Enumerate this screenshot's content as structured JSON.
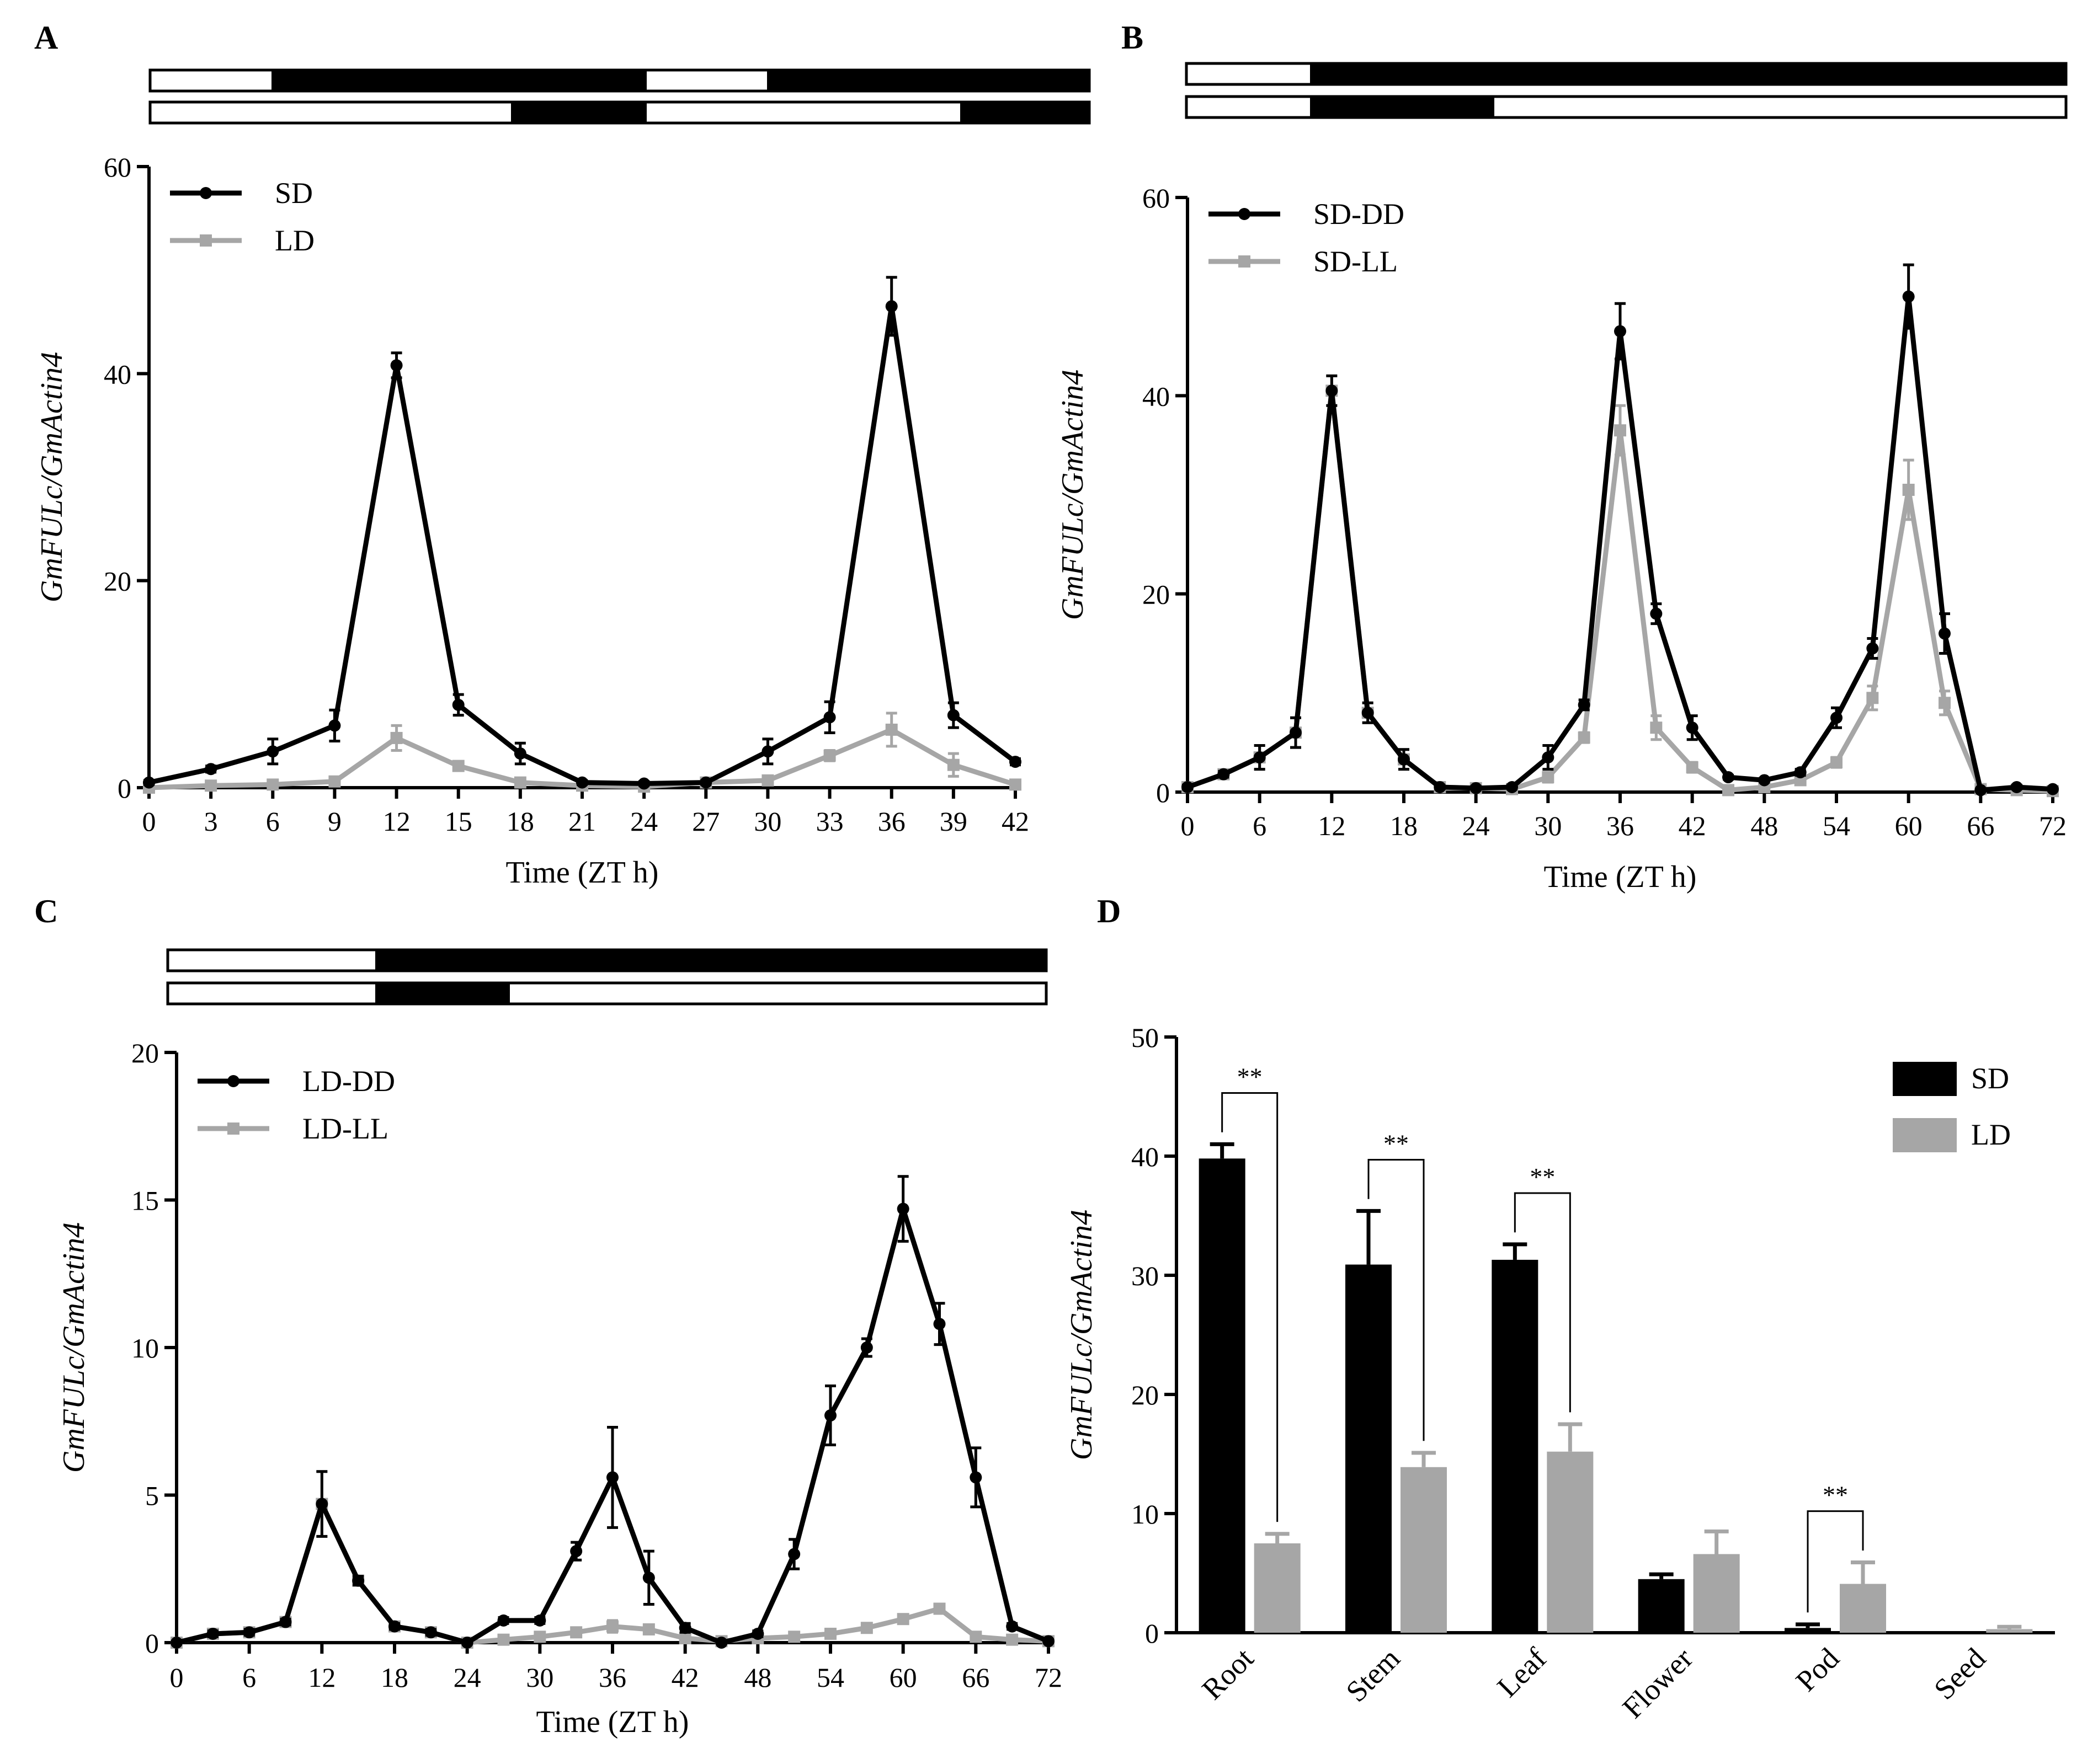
{
  "figure": {
    "colors": {
      "dark": "#000000",
      "light": "#a6a6a6"
    },
    "photoperiod_legend_note": "light/dark condition bars above panels A-C"
  },
  "chart_data": [
    {
      "panel": "A",
      "type": "line",
      "title": "",
      "xlabel": "Time (ZT h)",
      "ylabel": "GmFULc/GmActin4",
      "xlim": [
        0,
        42
      ],
      "ylim": [
        0,
        60
      ],
      "xticks": [
        0,
        3,
        6,
        9,
        12,
        15,
        18,
        21,
        24,
        27,
        30,
        33,
        36,
        39,
        42
      ],
      "yticks": [
        0,
        20,
        40,
        60
      ],
      "legend": "top-left",
      "x": [
        0,
        3,
        6,
        9,
        12,
        15,
        18,
        21,
        24,
        27,
        30,
        33,
        36,
        39,
        42
      ],
      "series": [
        {
          "name": "SD",
          "color": "#000000",
          "marker": "circle",
          "values": [
            0.5,
            1.8,
            3.5,
            6,
            40.8,
            8,
            3.3,
            0.5,
            0.4,
            0.5,
            3.5,
            6.8,
            46.5,
            7,
            2.5
          ],
          "errors": [
            0.2,
            0.3,
            1.2,
            1.5,
            1.2,
            1,
            1,
            0.2,
            0.2,
            0.2,
            1.2,
            1.5,
            2.8,
            1.2,
            0.3
          ]
        },
        {
          "name": "LD",
          "color": "#a6a6a6",
          "marker": "square",
          "values": [
            0,
            0.2,
            0.3,
            0.6,
            4.8,
            2.1,
            0.5,
            0.2,
            0.1,
            0.5,
            0.7,
            3.1,
            5.6,
            2.2,
            0.3
          ],
          "errors": [
            0.1,
            0.1,
            0.2,
            0.3,
            1.2,
            0.4,
            0.2,
            0.1,
            0.1,
            0.2,
            0.3,
            0.5,
            1.6,
            1.1,
            0.2
          ]
        }
      ]
    },
    {
      "panel": "B",
      "type": "line",
      "title": "",
      "xlabel": "Time (ZT h)",
      "ylabel": "GmFULc/GmActin4",
      "xlim": [
        0,
        72
      ],
      "ylim": [
        0,
        60
      ],
      "xticks": [
        0,
        6,
        12,
        18,
        24,
        30,
        36,
        42,
        48,
        54,
        60,
        66,
        72
      ],
      "yticks": [
        0,
        20,
        40,
        60
      ],
      "legend": "top-left",
      "x": [
        0,
        3,
        6,
        9,
        12,
        15,
        18,
        21,
        24,
        27,
        30,
        33,
        36,
        39,
        42,
        45,
        48,
        51,
        54,
        57,
        60,
        63,
        66,
        69,
        72
      ],
      "series": [
        {
          "name": "SD-DD",
          "color": "#000000",
          "marker": "circle",
          "values": [
            0.5,
            1.8,
            3.5,
            6,
            40.5,
            8,
            3.3,
            0.5,
            0.4,
            0.5,
            3.5,
            8.8,
            46.5,
            18,
            6.5,
            1.5,
            1.2,
            2,
            7.5,
            14.5,
            50,
            16,
            0.2,
            0.5,
            0.3
          ],
          "errors": [
            0.2,
            0.3,
            1.2,
            1.5,
            1.5,
            1,
            1,
            0.2,
            0.2,
            0.2,
            1.2,
            0.5,
            2.8,
            1,
            1.2,
            0.2,
            0.2,
            0.3,
            1,
            1,
            3.2,
            2,
            0.1,
            0.2,
            0.1
          ]
        },
        {
          "name": "SD-LL",
          "color": "#a6a6a6",
          "marker": "square",
          "values": [
            0.5,
            1.8,
            3.5,
            6,
            40.5,
            8,
            3.3,
            0.5,
            0.4,
            0.3,
            1.5,
            5.5,
            36.5,
            6.5,
            2.5,
            0.2,
            0.5,
            1.2,
            3,
            9.5,
            30.5,
            9,
            0.3,
            0.2,
            0.1
          ],
          "errors": [
            0.2,
            0.3,
            1.2,
            1.5,
            1.5,
            1,
            1,
            0.2,
            0.2,
            0.2,
            0.5,
            0.5,
            2.5,
            1.2,
            0.5,
            0.1,
            0.1,
            0.3,
            0.5,
            1.2,
            3,
            1.2,
            0.1,
            0.1,
            0.1
          ]
        }
      ]
    },
    {
      "panel": "C",
      "type": "line",
      "title": "",
      "xlabel": "Time (ZT h)",
      "ylabel": "GmFULc/GmActin4",
      "xlim": [
        0,
        72
      ],
      "ylim": [
        0,
        20
      ],
      "xticks": [
        0,
        6,
        12,
        18,
        24,
        30,
        36,
        42,
        48,
        54,
        60,
        66,
        72
      ],
      "yticks": [
        0,
        5,
        10,
        15,
        20
      ],
      "legend": "top-left",
      "x": [
        0,
        3,
        6,
        9,
        12,
        15,
        18,
        21,
        24,
        27,
        30,
        33,
        36,
        39,
        42,
        45,
        48,
        51,
        54,
        57,
        60,
        63,
        66,
        69,
        72
      ],
      "series": [
        {
          "name": "LD-DD",
          "color": "#000000",
          "marker": "circle",
          "values": [
            0,
            0.3,
            0.35,
            0.7,
            4.7,
            2.1,
            0.55,
            0.35,
            0,
            0.75,
            0.75,
            3.1,
            5.6,
            2.2,
            0.5,
            0,
            0.3,
            3,
            7.7,
            10,
            14.7,
            10.8,
            5.6,
            0.55,
            0.05
          ],
          "errors": [
            0.05,
            0.1,
            0.1,
            0.1,
            1.1,
            0.15,
            0.1,
            0.1,
            0.05,
            0.1,
            0.1,
            0.3,
            1.7,
            0.9,
            0.15,
            0.05,
            0.1,
            0.5,
            1,
            0.3,
            1.1,
            0.7,
            1,
            0.1,
            0.05
          ]
        },
        {
          "name": "LD-LL",
          "color": "#a6a6a6",
          "marker": "square",
          "values": [
            0,
            0.3,
            0.35,
            0.7,
            4.7,
            2.1,
            0.55,
            0.35,
            0,
            0.1,
            0.2,
            0.35,
            0.55,
            0.45,
            0.15,
            0.05,
            0.15,
            0.2,
            0.3,
            0.5,
            0.8,
            1.15,
            0.2,
            0.1,
            0.05
          ],
          "errors": [
            0.05,
            0.1,
            0.1,
            0.1,
            1.1,
            0.15,
            0.1,
            0.1,
            0.05,
            0.05,
            0.1,
            0.1,
            0.2,
            0.15,
            0.05,
            0.05,
            0.05,
            0.05,
            0.1,
            0.1,
            0.1,
            0.1,
            0.1,
            0.05,
            0.05
          ]
        }
      ]
    },
    {
      "panel": "D",
      "type": "bar",
      "title": "",
      "xlabel": "",
      "ylabel": "GmFULc/GmActin4",
      "ylim": [
        0,
        50
      ],
      "yticks": [
        0,
        10,
        20,
        30,
        40,
        50
      ],
      "legend": "top-right",
      "categories": [
        "Root",
        "Stem",
        "Leaf",
        "Flower",
        "Pod",
        "Seed"
      ],
      "series": [
        {
          "name": "SD",
          "color": "#000000",
          "values": [
            39.8,
            30.9,
            31.3,
            4.5,
            0.4,
            0
          ],
          "errors": [
            1.2,
            4.5,
            1.3,
            0.4,
            0.3,
            0
          ]
        },
        {
          "name": "LD",
          "color": "#a6a6a6",
          "values": [
            7.5,
            13.9,
            15.2,
            6.6,
            4.1,
            0.3
          ],
          "errors": [
            0.8,
            1.2,
            2.3,
            1.9,
            1.8,
            0.2
          ]
        }
      ],
      "significance": [
        {
          "category": "Root",
          "label": "**"
        },
        {
          "category": "Stem",
          "label": "**"
        },
        {
          "category": "Leaf",
          "label": "**"
        },
        {
          "category": "Pod",
          "label": "**"
        }
      ]
    }
  ],
  "panel_labels": [
    "A",
    "B",
    "C",
    "D"
  ]
}
